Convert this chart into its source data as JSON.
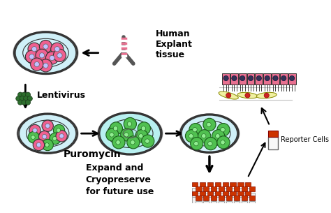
{
  "background_color": "#ffffff",
  "text_labels": {
    "human_explant": "Human\nExplant\ntissue",
    "lentivirus": "Lentivirus",
    "puromycin": "Puromycin",
    "expand": "Expand and\nCryopreserve\nfor future use",
    "reporter_cells": "Reporter Cells"
  },
  "arrow_color": "#000000",
  "cell_pink": "#f06090",
  "cell_green": "#50c050",
  "cell_dark_green": "#2d6e2d",
  "vial_red": "#cc3300",
  "tissue_pink": "#e87090",
  "dish_outline": "#333333",
  "dish_fill": "#d0f0f8"
}
